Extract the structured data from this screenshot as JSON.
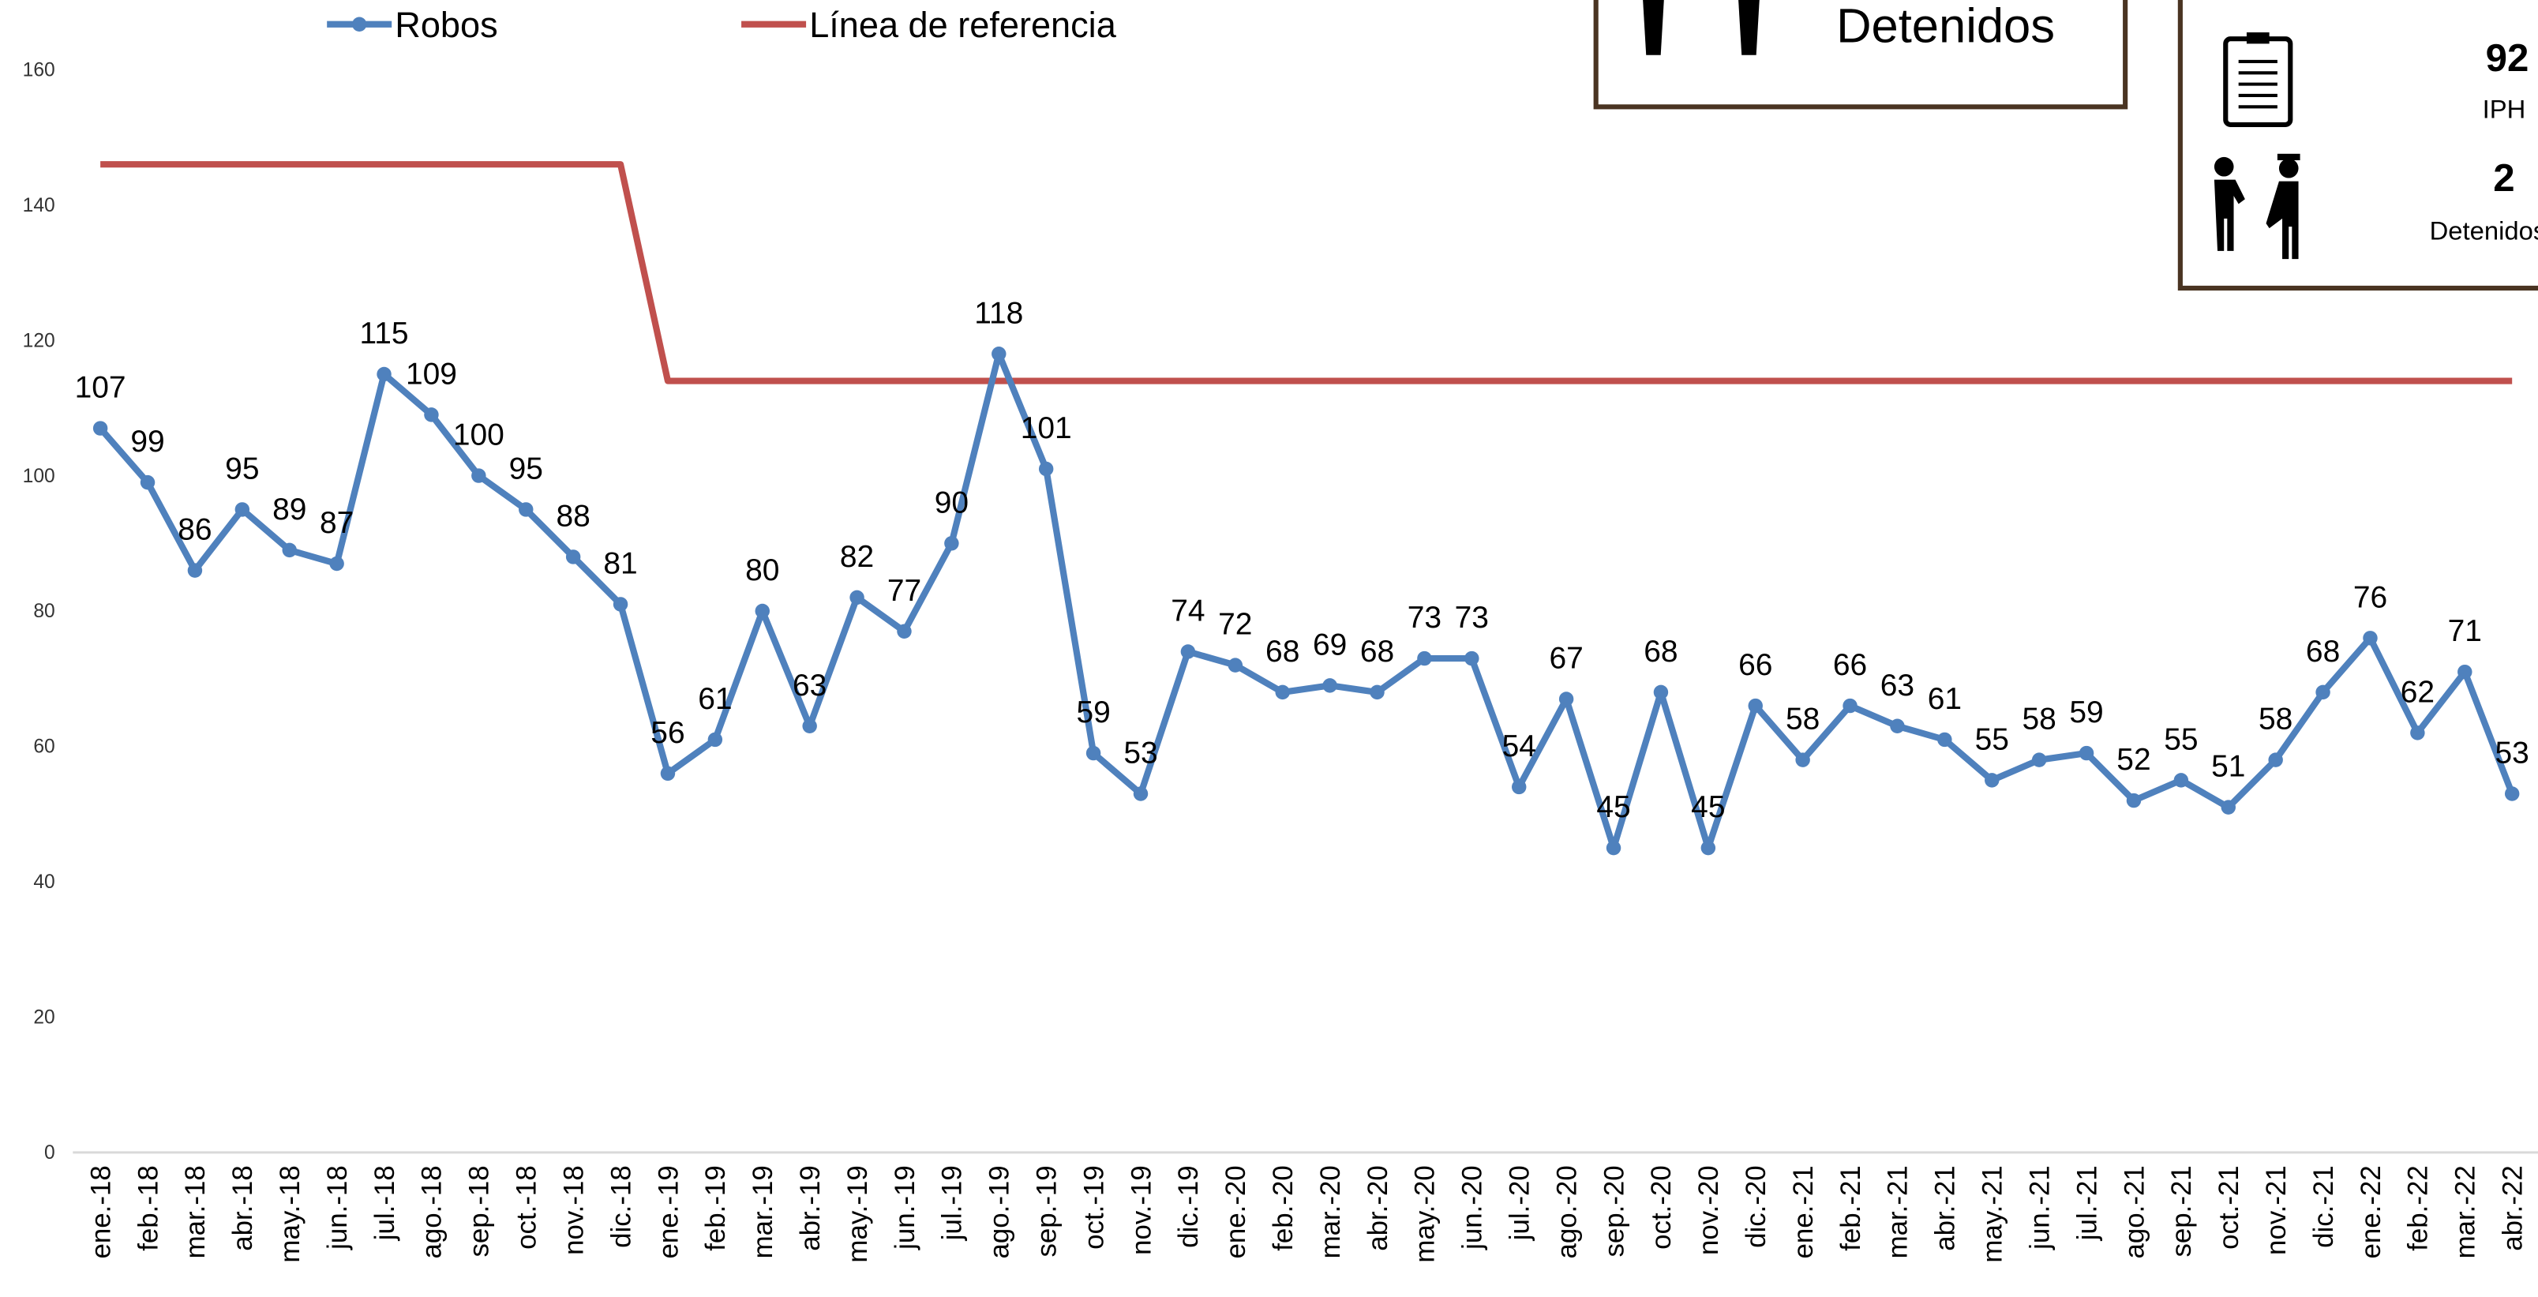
{
  "chart_data": {
    "type": "line",
    "categories": [
      "ene.-18",
      "feb.-18",
      "mar.-18",
      "abr.-18",
      "may.-18",
      "jun.-18",
      "jul.-18",
      "ago.-18",
      "sep.-18",
      "oct.-18",
      "nov.-18",
      "dic.-18",
      "ene.-19",
      "feb.-19",
      "mar.-19",
      "abr.-19",
      "may.-19",
      "jun.-19",
      "jul.-19",
      "ago.-19",
      "sep.-19",
      "oct.-19",
      "nov.-19",
      "dic.-19",
      "ene.-20",
      "feb.-20",
      "mar.-20",
      "abr.-20",
      "may.-20",
      "jun.-20",
      "jul.-20",
      "ago.-20",
      "sep.-20",
      "oct.-20",
      "nov.-20",
      "dic.-20",
      "ene.-21",
      "feb.-21",
      "mar.-21",
      "abr.-21",
      "may.-21",
      "jun.-21",
      "jul.-21",
      "ago.-21",
      "sep.-21",
      "oct.-21",
      "nov.-21",
      "dic.-21",
      "ene.-22",
      "feb.-22",
      "mar.-22",
      "abr.-22"
    ],
    "series": [
      {
        "name": "Robos",
        "color": "#4f81bd",
        "markers": true,
        "data_labels": true,
        "values": [
          107,
          99,
          86,
          95,
          89,
          87,
          115,
          109,
          100,
          95,
          88,
          81,
          56,
          61,
          80,
          63,
          82,
          77,
          90,
          118,
          101,
          59,
          53,
          74,
          72,
          68,
          69,
          68,
          73,
          73,
          54,
          67,
          45,
          68,
          45,
          66,
          58,
          66,
          63,
          61,
          55,
          58,
          59,
          52,
          55,
          51,
          58,
          68,
          76,
          62,
          71,
          53
        ]
      },
      {
        "name": "Línea de referencia",
        "color": "#c0504d",
        "markers": false,
        "data_labels": false,
        "values": [
          146,
          146,
          146,
          146,
          146,
          146,
          146,
          146,
          146,
          146,
          146,
          146,
          114,
          114,
          114,
          114,
          114,
          114,
          114,
          114,
          114,
          114,
          114,
          114,
          114,
          114,
          114,
          114,
          114,
          114,
          114,
          114,
          114,
          114,
          114,
          114,
          114,
          114,
          114,
          114,
          114,
          114,
          114,
          114,
          114,
          114,
          114,
          114,
          114,
          114,
          114,
          114
        ]
      }
    ],
    "ylim": [
      0,
      160
    ],
    "yticks": [
      0,
      20,
      40,
      60,
      80,
      100,
      120,
      140,
      160
    ],
    "legend": "top"
  },
  "panels": [
    {
      "label": "Detenidos"
    },
    {
      "items": [
        {
          "value": "92",
          "label": "IPH"
        },
        {
          "value": "2",
          "label": "Detenidos"
        }
      ]
    }
  ]
}
